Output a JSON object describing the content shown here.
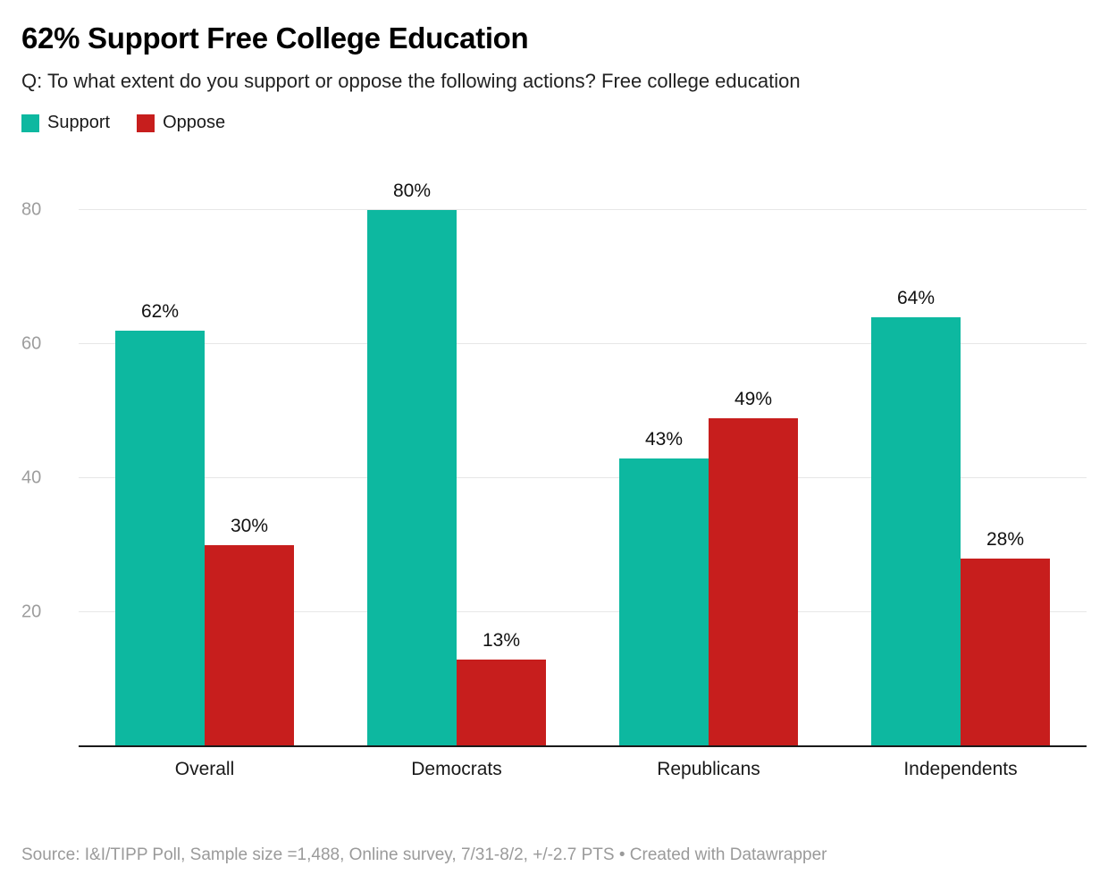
{
  "title": "62% Support Free College Education",
  "subtitle": "Q: To what extent do you support or oppose the following actions? Free college education",
  "legend": [
    {
      "label": "Support",
      "color": "#0db8a0"
    },
    {
      "label": "Oppose",
      "color": "#c71e1d"
    }
  ],
  "footer": "Source: I&I/TIPP Poll, Sample size =1,488, Online survey, 7/31-8/2, +/-2.7 PTS • Created with Datawrapper",
  "chart_data": {
    "type": "bar",
    "categories": [
      "Overall",
      "Democrats",
      "Republicans",
      "Independents"
    ],
    "series": [
      {
        "name": "Support",
        "color": "#0db8a0",
        "values": [
          62,
          80,
          43,
          64
        ]
      },
      {
        "name": "Oppose",
        "color": "#c71e1d",
        "values": [
          30,
          13,
          49,
          28
        ]
      }
    ],
    "value_suffix": "%",
    "yticks": [
      20,
      40,
      60,
      80
    ],
    "ylim": [
      0,
      85
    ],
    "grid": "horizontal",
    "legend_position": "top"
  }
}
